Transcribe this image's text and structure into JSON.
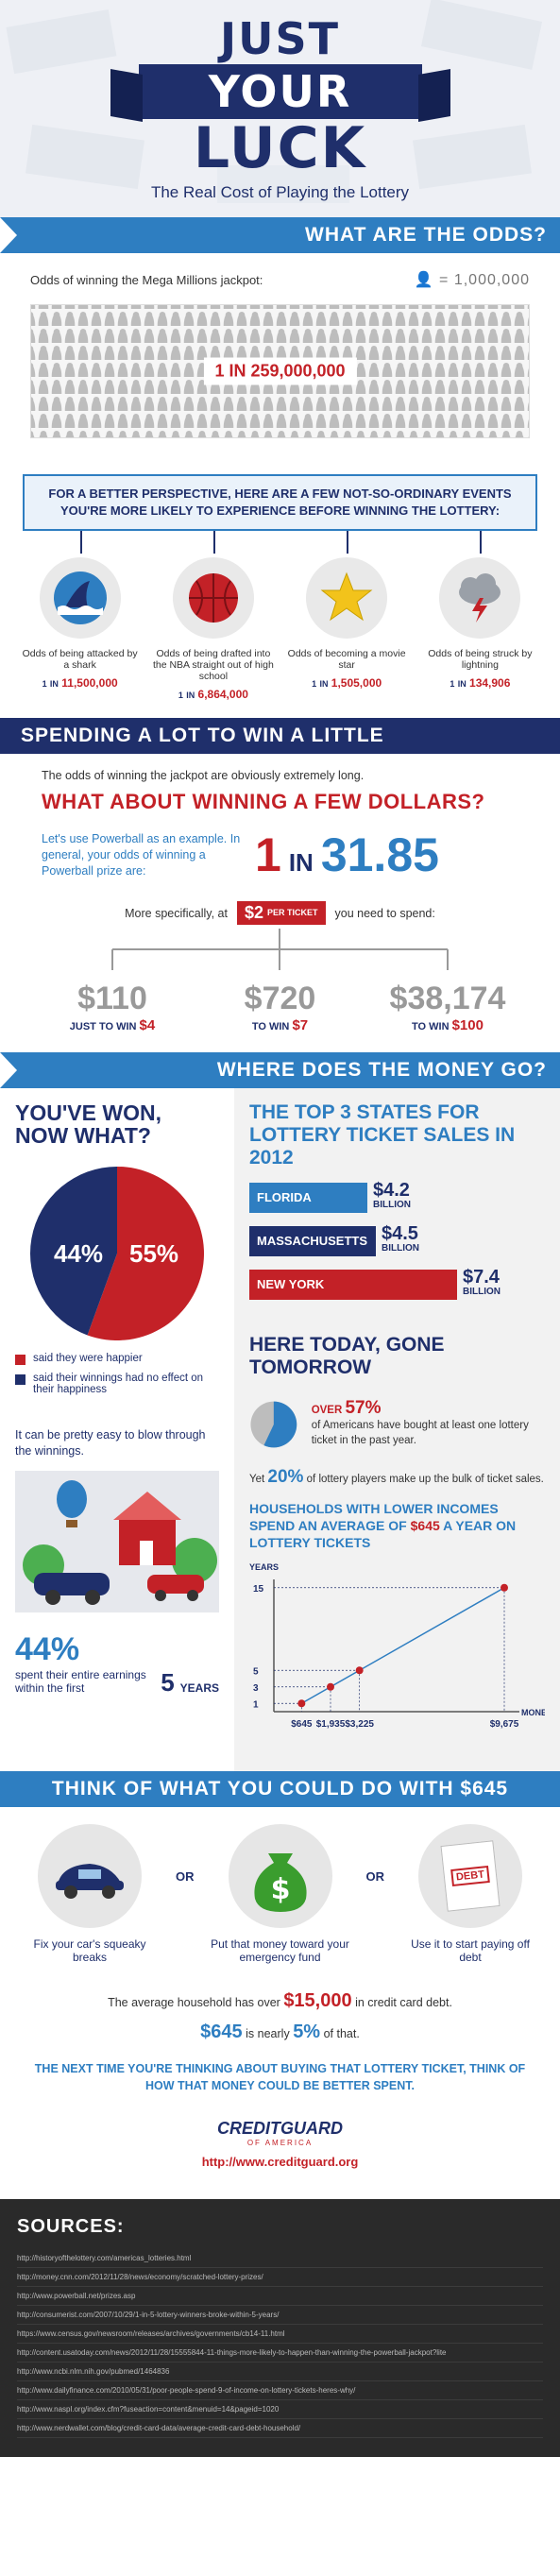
{
  "header": {
    "title_line1": "JUST",
    "title_line2": "YOUR",
    "title_line3": "LUCK",
    "subtitle": "The Real Cost of Playing the Lottery"
  },
  "odds": {
    "heading": "WHAT ARE THE ODDS?",
    "mega_label": "Odds of winning the Mega Millions jackpot:",
    "legend": "= 1,000,000",
    "jackpot_odds": "1 IN 259,000,000",
    "perspective": "FOR A BETTER PERSPECTIVE, HERE ARE A FEW NOT-SO-ORDINARY EVENTS YOU'RE MORE LIKELY TO EXPERIENCE BEFORE WINNING THE LOTTERY:",
    "events": [
      {
        "label": "Odds of being attacked by a shark",
        "one": "1",
        "in": "IN",
        "value": "11,500,000"
      },
      {
        "label": "Odds of being drafted into the NBA straight out of high school",
        "one": "1",
        "in": "IN",
        "value": "6,864,000"
      },
      {
        "label": "Odds of becoming a movie star",
        "one": "1",
        "in": "IN",
        "value": "1,505,000"
      },
      {
        "label": "Odds of being struck by lightning",
        "one": "1",
        "in": "IN",
        "value": "134,906"
      }
    ]
  },
  "spending": {
    "heading": "SPENDING A LOT TO WIN A LITTLE",
    "intro": "The odds of winning the jackpot are obviously extremely long.",
    "question": "WHAT ABOUT WINNING A FEW DOLLARS?",
    "powerball_text": "Let's use Powerball as an example. In general, your odds of winning a Powerball prize are:",
    "pb_one": "1",
    "pb_in": "IN",
    "pb_num": "31.85",
    "spec_before": "More specifically, at",
    "ticket_price": "$2",
    "ticket_per": "PER TICKET",
    "spec_after": "you need to spend:",
    "tiers": [
      {
        "spend": "$110",
        "win_label": "JUST TO WIN",
        "win": "$4"
      },
      {
        "spend": "$720",
        "win_label": "TO WIN",
        "win": "$7"
      },
      {
        "spend": "$38,174",
        "win_label": "TO WIN",
        "win": "$100"
      }
    ]
  },
  "money": {
    "heading": "WHERE DOES THE MONEY GO?",
    "won_heading": "YOU'VE WON, NOW WHAT?",
    "pie": {
      "happier_pct": "55%",
      "noeffect_pct": "44%",
      "happier": 55,
      "noeffect": 44
    },
    "legend_happier": "said they were happier",
    "legend_noeffect": "said their winnings had no effect on their happiness",
    "blow_text": "It can be pretty easy to blow through the winnings.",
    "stat_pct": "44%",
    "stat_text": "spent their entire earnings within the first",
    "stat_years": "5",
    "stat_years_label": "YEARS",
    "top3_heading": "THE TOP 3 STATES FOR LOTTERY TICKET SALES IN 2012",
    "states": [
      {
        "name": "FLORIDA",
        "value": "$4.2",
        "unit": "BILLION",
        "amount": 4.2,
        "color": "#2e7ec1"
      },
      {
        "name": "MASSACHUSETTS",
        "value": "$4.5",
        "unit": "BILLION",
        "amount": 4.5,
        "color": "#1f2f6b"
      },
      {
        "name": "NEW YORK",
        "value": "$7.4",
        "unit": "BILLION",
        "amount": 7.4,
        "color": "#c32127"
      }
    ],
    "gone_heading": "HERE TODAY, GONE TOMORROW",
    "over_label": "OVER",
    "over_pct": "57%",
    "over_text": "of Americans have bought at least one lottery ticket in the past year.",
    "yet_label": "Yet",
    "yet_pct": "20%",
    "yet_text": "of lottery players make up the bulk of ticket sales.",
    "house_text_1": "HOUSEHOLDS WITH LOWER INCOMES SPEND AN AVERAGE OF",
    "house_amount": "$645",
    "house_text_2": "A YEAR ON LOTTERY TICKETS"
  },
  "chart_data": {
    "type": "line",
    "xlabel": "MONEY",
    "ylabel": "YEARS",
    "x_labels": [
      "$645",
      "$1,935",
      "$3,225",
      "$9,675"
    ],
    "x": [
      645,
      1935,
      3225,
      9675
    ],
    "y": [
      1,
      3,
      5,
      15
    ],
    "y_ticks": [
      "1",
      "3",
      "5",
      "15"
    ],
    "ylim": [
      0,
      16
    ]
  },
  "think": {
    "heading": "THINK OF WHAT YOU COULD DO WITH $645",
    "or": "OR",
    "options": [
      {
        "text": "Fix your car's squeaky breaks"
      },
      {
        "text": "Put that money toward your emergency fund"
      },
      {
        "text": "Use it to start paying off debt"
      }
    ],
    "debt_tag": "DEBT",
    "avg_before": "The average household has over",
    "avg_amount": "$15,000",
    "avg_after": "in credit card debt.",
    "pct_amount": "$645",
    "pct_mid": "is nearly",
    "pct_value": "5%",
    "pct_after": "of that.",
    "closing": "THE NEXT TIME YOU'RE THINKING ABOUT BUYING THAT LOTTERY TICKET, THINK OF HOW THAT MONEY COULD BE BETTER SPENT.",
    "logo": "CREDITGUARD",
    "logo_sub": "OF AMERICA",
    "url": "http://www.creditguard.org"
  },
  "sources": {
    "heading": "SOURCES:",
    "items": [
      "http://historyofthelottery.com/americas_lotteries.html",
      "http://money.cnn.com/2012/11/28/news/economy/scratched-lottery-prizes/",
      "http://www.powerball.net/prizes.asp",
      "http://consumerist.com/2007/10/29/1-in-5-lottery-winners-broke-within-5-years/",
      "https://www.census.gov/newsroom/releases/archives/governments/cb14-11.html",
      "http://content.usatoday.com/news/2012/11/28/15555844-11-things-more-likely-to-happen-than-winning-the-powerball-jackpot?lite",
      "http://www.ncbi.nlm.nih.gov/pubmed/1464836",
      "http://www.dailyfinance.com/2010/05/31/poor-people-spend-9-of-income-on-lottery-tickets-heres-why/",
      "http://www.naspl.org/index.cfm?fuseaction=content&menuid=14&pageid=1020",
      "http://www.nerdwallet.com/blog/credit-card-data/average-credit-card-debt-household/"
    ]
  }
}
